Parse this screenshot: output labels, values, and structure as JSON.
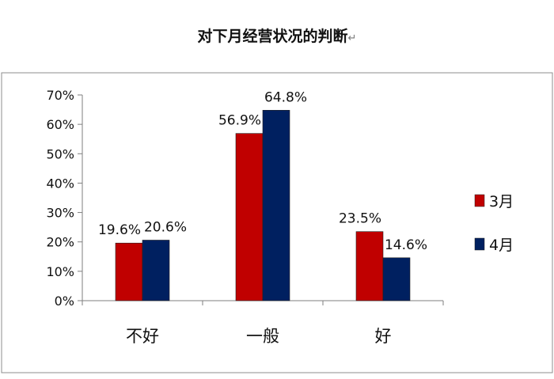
{
  "chart_data": {
    "type": "bar",
    "title": "对下月经营状况的判断",
    "title_suffix": "↵",
    "categories": [
      "不好",
      "一般",
      "好"
    ],
    "series": [
      {
        "name": "3月",
        "values": [
          19.6,
          56.9,
          23.5
        ],
        "labels": [
          "19.6%",
          "56.9%",
          "23.5%"
        ],
        "color": "#C00000"
      },
      {
        "name": "4月",
        "values": [
          20.6,
          64.8,
          14.6
        ],
        "labels": [
          "20.6%",
          "64.8%",
          "14.6%"
        ],
        "color": "#002060"
      }
    ],
    "ylim": [
      0,
      70
    ],
    "yticks": [
      "0%",
      "10%",
      "20%",
      "30%",
      "40%",
      "50%",
      "60%",
      "70%"
    ],
    "y_tick_values": [
      0,
      10,
      20,
      30,
      40,
      50,
      60,
      70
    ],
    "xlabel": "",
    "ylabel": "",
    "grid": false,
    "legend_position": "right"
  }
}
